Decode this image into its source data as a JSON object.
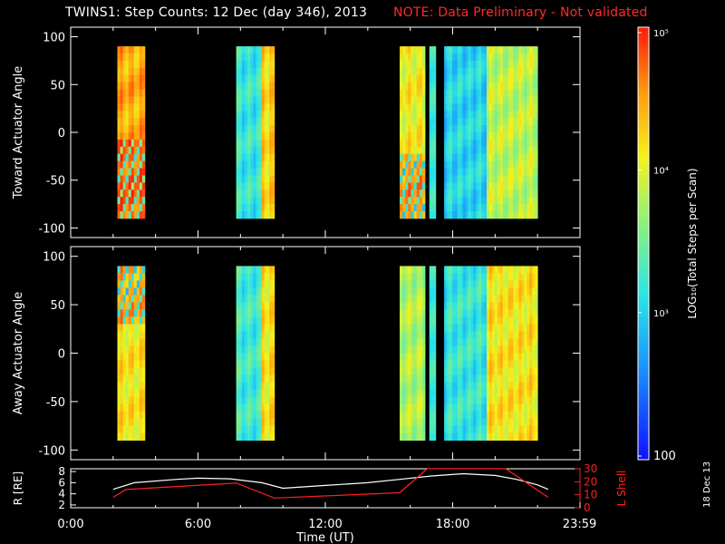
{
  "header": {
    "title": "TWINS1: Step Counts: 12 Dec (day 346), 2013",
    "note": "NOTE: Data Preliminary - Not validated"
  },
  "footer": {
    "date_stamp": "18 Dec 13"
  },
  "colors": {
    "background": "#000000",
    "axis": "#ffffff",
    "note": "#ff2a2a",
    "l_shell": "#ff2020",
    "r_line": "#ffffff"
  },
  "chart_data": [
    {
      "type": "heatmap",
      "panel": "toward",
      "ylabel": "Toward Actuator Angle",
      "ylim": [
        -110,
        110
      ],
      "yticks": [
        100,
        50,
        0,
        -50,
        -100
      ],
      "xlim": [
        0,
        24
      ],
      "angle_range": [
        -90,
        90
      ],
      "data_blocks": [
        {
          "x_start": 2.2,
          "x_end": 3.5,
          "level": 0.82,
          "note": "mostly 10^4.5, wave pattern lower half"
        },
        {
          "x_start": 7.8,
          "x_end": 9.0,
          "level": 0.4
        },
        {
          "x_start": 9.0,
          "x_end": 9.6,
          "level": 0.75
        },
        {
          "x_start": 15.5,
          "x_end": 16.7,
          "level": 0.7
        },
        {
          "x_start": 16.9,
          "x_end": 17.2,
          "level": 0.45
        },
        {
          "x_start": 17.6,
          "x_end": 19.6,
          "level": 0.35
        },
        {
          "x_start": 19.6,
          "x_end": 22.0,
          "level": 0.62
        }
      ]
    },
    {
      "type": "heatmap",
      "panel": "away",
      "ylabel": "Away Actuator Angle",
      "ylim": [
        -110,
        110
      ],
      "yticks": [
        100,
        50,
        0,
        -50,
        -100
      ],
      "xlim": [
        0,
        24
      ],
      "angle_range": [
        -90,
        90
      ],
      "data_blocks": [
        {
          "x_start": 2.2,
          "x_end": 3.5,
          "level": 0.72
        },
        {
          "x_start": 7.8,
          "x_end": 9.0,
          "level": 0.42
        },
        {
          "x_start": 9.0,
          "x_end": 9.6,
          "level": 0.72
        },
        {
          "x_start": 15.5,
          "x_end": 16.7,
          "level": 0.6
        },
        {
          "x_start": 16.9,
          "x_end": 17.2,
          "level": 0.45
        },
        {
          "x_start": 17.6,
          "x_end": 19.6,
          "level": 0.4
        },
        {
          "x_start": 19.6,
          "x_end": 22.0,
          "level": 0.72
        }
      ]
    },
    {
      "type": "line",
      "panel": "orbit",
      "ylabel_left": "R [RE]",
      "ylabel_right": "L Shell",
      "yticks_left": [
        2,
        4,
        6,
        8
      ],
      "ylim_left": [
        1.5,
        8.5
      ],
      "yticks_right": [
        0,
        10,
        20,
        30
      ],
      "ylim_right": [
        0,
        30
      ],
      "xlim": [
        0,
        24
      ],
      "xticks": [
        "0:00",
        "6:00",
        "12:00",
        "18:00",
        "23:59"
      ],
      "xlabel": "Time (UT)",
      "series": [
        {
          "name": "R",
          "color": "#ffffff",
          "x": [
            2.0,
            3.0,
            5.0,
            6.0,
            7.5,
            9.0,
            10.0,
            12.0,
            14.0,
            15.5,
            17.0,
            18.5,
            20.0,
            21.0,
            22.0,
            22.5
          ],
          "y": [
            4.8,
            6.0,
            6.6,
            6.8,
            6.7,
            6.0,
            5.0,
            5.5,
            6.0,
            6.6,
            7.2,
            7.6,
            7.3,
            6.6,
            5.6,
            4.8
          ]
        },
        {
          "name": "L Shell",
          "color": "#ff2020",
          "axis": "right",
          "x": [
            2.0,
            2.6,
            7.8,
            9.6,
            15.5,
            16.8,
            20.5,
            22.5
          ],
          "y": [
            8.0,
            14.0,
            19.0,
            7.5,
            11.5,
            31.0,
            31.0,
            8.0
          ]
        }
      ]
    },
    {
      "type": "colorbar",
      "label": "LOG10(Total Steps per Scan)",
      "ticks": [
        "10^5",
        "10^4",
        "10^3",
        "100"
      ],
      "range": [
        100,
        100000
      ],
      "scale": "log"
    }
  ]
}
